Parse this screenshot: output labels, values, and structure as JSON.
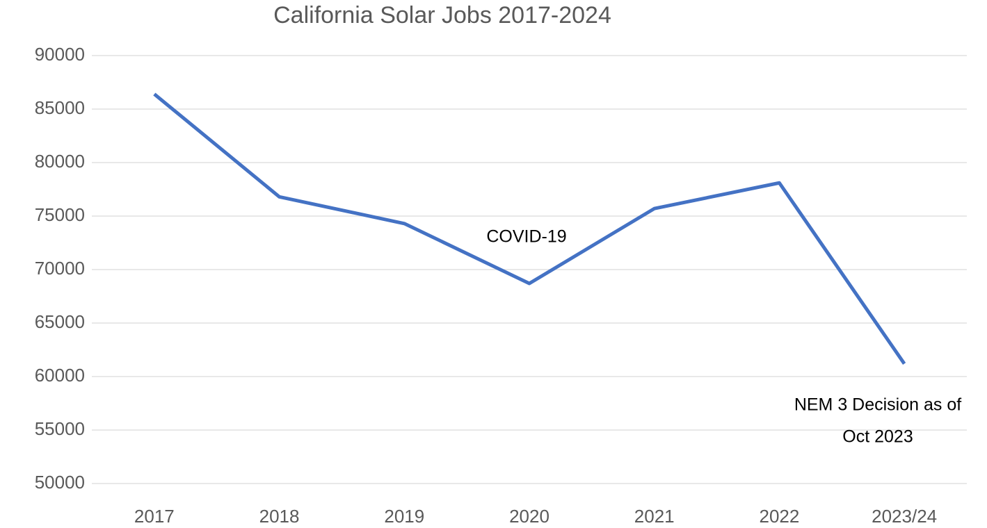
{
  "chart_data": {
    "type": "line",
    "title": "California Solar Jobs 2017-2024",
    "categories": [
      "2017",
      "2018",
      "2019",
      "2020",
      "2021",
      "2022",
      "2023/24"
    ],
    "series": [
      {
        "name": "California Solar Jobs",
        "color": "#4472c4",
        "values": [
          86400,
          76800,
          74300,
          68700,
          75700,
          78100,
          61200
        ]
      }
    ],
    "ylim": [
      50000,
      90000
    ],
    "yticks": [
      50000,
      55000,
      60000,
      65000,
      70000,
      75000,
      80000,
      85000,
      90000
    ],
    "grid": true,
    "annotations": [
      [
        "COVID-19"
      ],
      [
        "NEM 3 Decision as of",
        "Oct 2023"
      ]
    ]
  }
}
